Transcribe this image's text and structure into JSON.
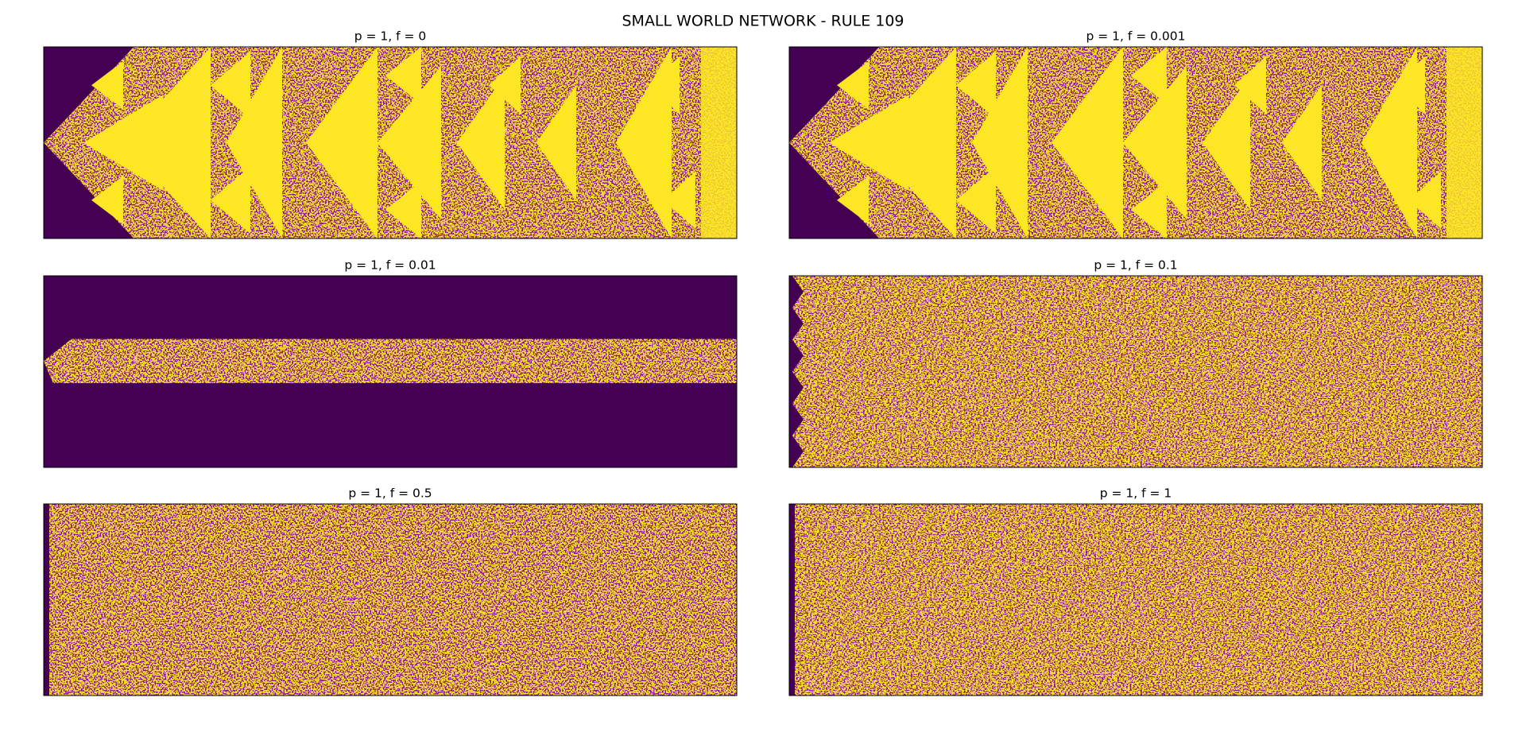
{
  "title": "SMALL WORLD NETWORK - RULE 109",
  "panels": [
    {
      "title": "p = 1, f = 0"
    },
    {
      "title": "p = 1, f = 0.001"
    },
    {
      "title": "p = 1, f = 0.01"
    },
    {
      "title": "p = 1, f = 0.1"
    },
    {
      "title": "p = 1, f = 0.5"
    },
    {
      "title": "p = 1, f = 1"
    }
  ]
}
